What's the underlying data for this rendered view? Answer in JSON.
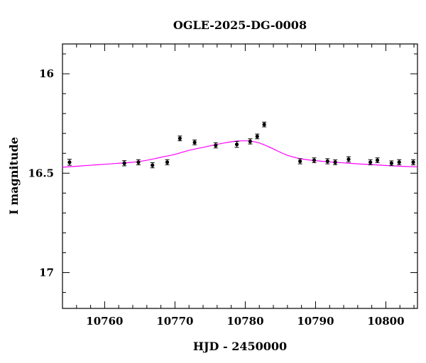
{
  "chart_data": {
    "type": "scatter",
    "title": "OGLE-2025-DG-0008",
    "xlabel": "HJD - 2450000",
    "ylabel": "I magnitude",
    "xlim": [
      10754,
      10804.5
    ],
    "ylim": [
      17.18,
      15.85
    ],
    "y_inverted": true,
    "x_ticks": [
      10760,
      10770,
      10780,
      10790,
      10800
    ],
    "y_ticks": [
      16,
      16.5,
      17
    ],
    "x_tick_labels": [
      "10760",
      "10770",
      "10780",
      "10790",
      "10800"
    ],
    "y_tick_labels": [
      "16",
      "16.5",
      "17"
    ],
    "x_minor_step": 2,
    "y_minor_step": 0.1,
    "grid": false,
    "model_color": "#ff00ff",
    "point_color": "#000000",
    "model": {
      "name": "",
      "x": [
        10754.0,
        10756.0,
        10758.0,
        10760.0,
        10762.0,
        10764.0,
        10766.0,
        10768.0,
        10770.0,
        10772.0,
        10774.0,
        10776.0,
        10777.0,
        10778.0,
        10779.0,
        10780.0,
        10781.0,
        10782.0,
        10783.0,
        10784.0,
        10785.0,
        10786.0,
        10787.0,
        10788.0,
        10790.0,
        10792.0,
        10794.0,
        10796.0,
        10798.0,
        10800.0,
        10802.0,
        10804.5
      ],
      "y": [
        16.47,
        16.465,
        16.46,
        16.455,
        16.45,
        16.445,
        16.435,
        16.42,
        16.405,
        16.385,
        16.37,
        16.355,
        16.348,
        16.342,
        16.338,
        16.337,
        16.34,
        16.348,
        16.362,
        16.378,
        16.395,
        16.41,
        16.42,
        16.428,
        16.437,
        16.443,
        16.448,
        16.453,
        16.457,
        16.461,
        16.465,
        16.468
      ]
    },
    "series": [
      {
        "name": "",
        "x": [
          10755.0,
          10762.8,
          10764.8,
          10766.8,
          10768.9,
          10770.7,
          10772.8,
          10775.8,
          10778.8,
          10780.7,
          10781.7,
          10782.7,
          10787.8,
          10789.8,
          10791.7,
          10792.8,
          10794.7,
          10797.8,
          10798.8,
          10800.8,
          10801.9,
          10803.9
        ],
        "y": [
          16.445,
          16.45,
          16.445,
          16.46,
          16.445,
          16.325,
          16.345,
          16.36,
          16.355,
          16.34,
          16.315,
          16.255,
          16.44,
          16.435,
          16.44,
          16.445,
          16.43,
          16.445,
          16.435,
          16.45,
          16.445,
          16.445
        ],
        "err": [
          0.015,
          0.013,
          0.013,
          0.013,
          0.013,
          0.012,
          0.012,
          0.013,
          0.015,
          0.013,
          0.012,
          0.012,
          0.013,
          0.012,
          0.013,
          0.012,
          0.013,
          0.013,
          0.012,
          0.012,
          0.013,
          0.013
        ]
      }
    ]
  }
}
